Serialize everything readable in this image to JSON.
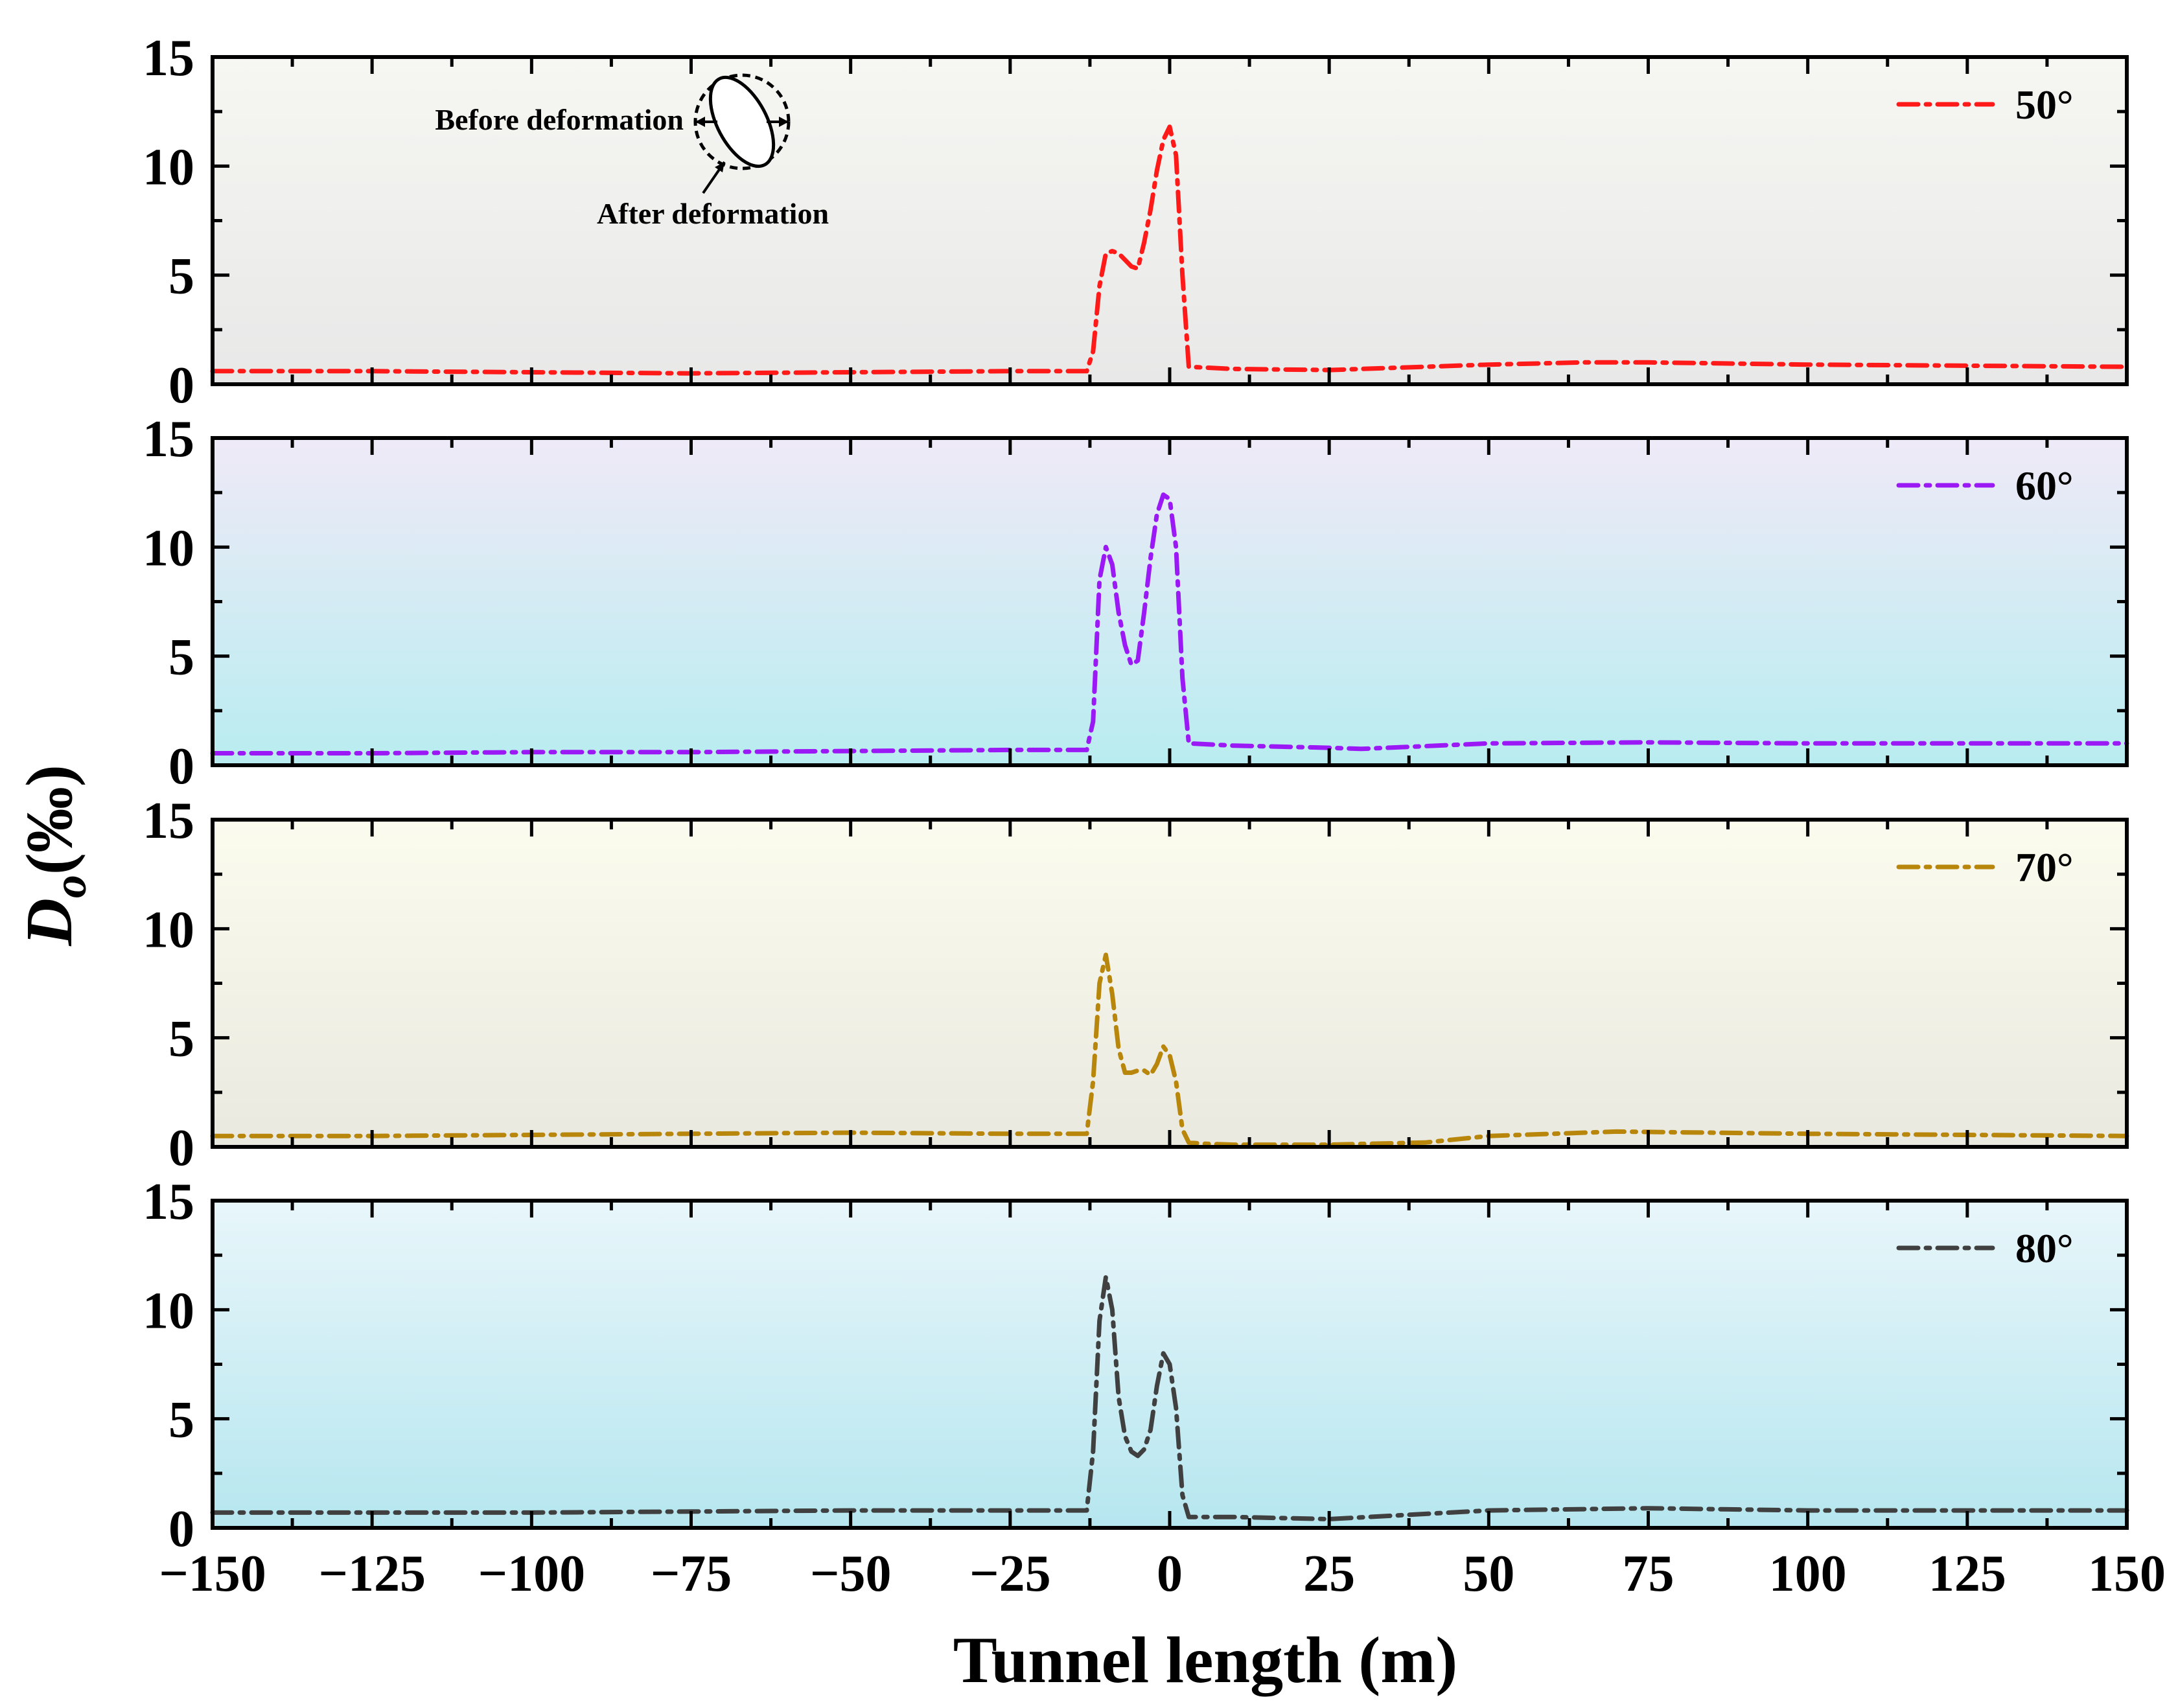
{
  "chart_data": {
    "type": "line",
    "xlabel": "Tunnel length (m)",
    "ylabel": {
      "main": "D",
      "sub": "o",
      "unit": "(‰)"
    },
    "xlim": [
      -150,
      150
    ],
    "ylim": [
      0,
      15
    ],
    "x_ticks": [
      -150,
      -125,
      -100,
      -75,
      -50,
      -25,
      0,
      25,
      50,
      75,
      100,
      125,
      150
    ],
    "x_tick_labels": [
      "−150",
      "−125",
      "−100",
      "−75",
      "−50",
      "−25",
      "0",
      "25",
      "50",
      "75",
      "100",
      "125",
      "150"
    ],
    "y_ticks": [
      0,
      5,
      10,
      15
    ],
    "y_tick_labels": [
      "0",
      "5",
      "10",
      "15"
    ],
    "legend_position": "top-right",
    "line_style": "dash-dot",
    "panels": [
      {
        "name": "50°",
        "color": "#ff1a1a",
        "bg_top": "#f6f6f2",
        "bg_bottom": "#e8e8e8",
        "x": [
          -150,
          -125,
          -100,
          -75,
          -50,
          -25,
          -13,
          -12,
          -11,
          -10,
          -9,
          -8,
          -7,
          -6,
          -5,
          -4,
          -3,
          -2,
          -1,
          0,
          1,
          2,
          3,
          10,
          25,
          50,
          65,
          75,
          100,
          125,
          150
        ],
        "y": [
          0.6,
          0.6,
          0.55,
          0.5,
          0.55,
          0.6,
          0.6,
          1.5,
          4.5,
          6.0,
          6.1,
          6.0,
          5.7,
          5.4,
          5.3,
          6.5,
          8.0,
          9.8,
          11.2,
          11.8,
          10.5,
          5.0,
          0.8,
          0.7,
          0.65,
          0.9,
          1.0,
          1.0,
          0.9,
          0.85,
          0.8
        ]
      },
      {
        "name": "60°",
        "color": "#9b19f5",
        "bg_top": "#efeaf7",
        "bg_bottom": "#b8ecf0",
        "x": [
          -150,
          -125,
          -100,
          -75,
          -50,
          -25,
          -13,
          -12,
          -11,
          -10,
          -9,
          -8,
          -7,
          -6,
          -5,
          -4,
          -3,
          -2,
          -1,
          0,
          1,
          2,
          3,
          10,
          25,
          30,
          50,
          75,
          100,
          125,
          150
        ],
        "y": [
          0.55,
          0.55,
          0.6,
          0.6,
          0.65,
          0.7,
          0.7,
          2.0,
          8.5,
          10.0,
          9.2,
          7.0,
          5.5,
          4.6,
          4.8,
          7.0,
          9.5,
          11.5,
          12.4,
          12.2,
          10.0,
          4.0,
          1.0,
          0.9,
          0.8,
          0.75,
          1.0,
          1.05,
          1.0,
          1.0,
          1.0
        ]
      },
      {
        "name": "70°",
        "color": "#b8860b",
        "bg_top": "#fbfbee",
        "bg_bottom": "#e9e9e0",
        "x": [
          -150,
          -125,
          -100,
          -75,
          -50,
          -25,
          -13,
          -12,
          -11,
          -10,
          -9,
          -8,
          -7,
          -6,
          -5,
          -4,
          -3,
          -2,
          -1,
          0,
          1,
          2,
          3,
          5,
          10,
          25,
          40,
          50,
          70,
          100,
          125,
          150
        ],
        "y": [
          0.5,
          0.5,
          0.55,
          0.6,
          0.65,
          0.6,
          0.6,
          3.0,
          7.5,
          8.8,
          7.0,
          4.5,
          3.4,
          3.4,
          3.5,
          3.5,
          3.3,
          3.8,
          4.6,
          4.2,
          3.0,
          0.8,
          0.2,
          0.15,
          0.1,
          0.1,
          0.2,
          0.5,
          0.7,
          0.6,
          0.55,
          0.5
        ]
      },
      {
        "name": "80°",
        "color": "#404040",
        "bg_top": "#e8f6fa",
        "bg_bottom": "#b6e6ef",
        "x": [
          -150,
          -125,
          -100,
          -75,
          -50,
          -25,
          -13,
          -12,
          -11,
          -10,
          -9,
          -8,
          -7,
          -6,
          -5,
          -4,
          -3,
          -2,
          -1,
          0,
          1,
          2,
          3,
          10,
          25,
          50,
          75,
          100,
          125,
          150
        ],
        "y": [
          0.7,
          0.7,
          0.7,
          0.75,
          0.8,
          0.8,
          0.8,
          3.5,
          9.5,
          11.5,
          10.0,
          6.0,
          4.2,
          3.5,
          3.3,
          3.6,
          4.5,
          6.5,
          8.0,
          7.5,
          5.5,
          1.5,
          0.5,
          0.5,
          0.4,
          0.8,
          0.9,
          0.8,
          0.8,
          0.8
        ]
      }
    ],
    "annotation": {
      "before_label": "Before deformation",
      "after_label": "After deformation"
    }
  }
}
